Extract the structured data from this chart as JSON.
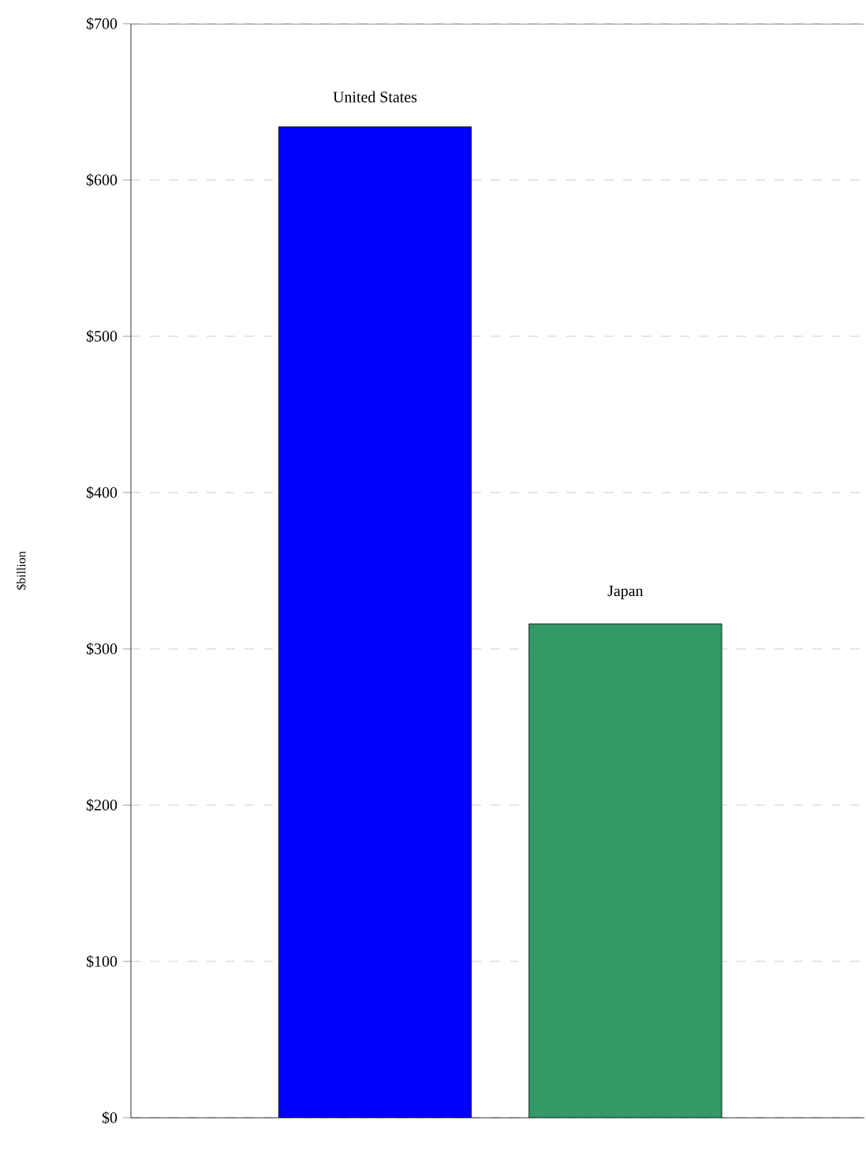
{
  "chart_data": {
    "type": "bar",
    "ylabel": "$billion",
    "categories": [
      "United States",
      "Japan"
    ],
    "values": [
      634,
      316
    ],
    "colors": [
      "#0000ff",
      "#339966"
    ],
    "ylim": [
      0,
      700
    ],
    "yticks": [
      {
        "value": 0,
        "label": "$0"
      },
      {
        "value": 100,
        "label": "$100"
      },
      {
        "value": 200,
        "label": "$200"
      },
      {
        "value": 300,
        "label": "$300"
      },
      {
        "value": 400,
        "label": "$400"
      },
      {
        "value": 500,
        "label": "$500"
      },
      {
        "value": 600,
        "label": "$600"
      },
      {
        "value": 700,
        "label": "$700"
      }
    ],
    "grid": "y",
    "tick_labels": "y"
  }
}
